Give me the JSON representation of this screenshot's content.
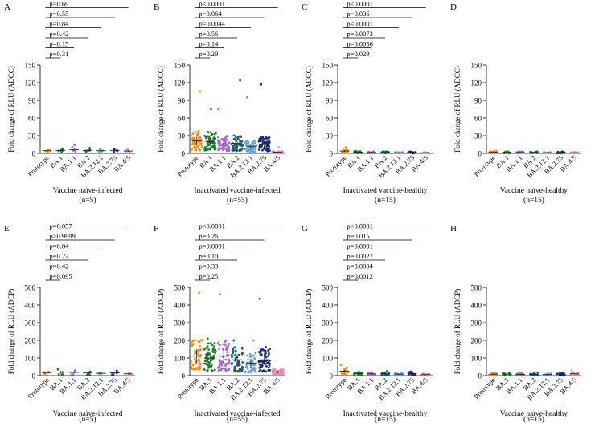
{
  "figure": {
    "colors": {
      "Prototype": "#f28e1c",
      "BA.1": "#1f7a2e",
      "BA.1.1": "#a668c9",
      "BA.2": "#1a5f6e",
      "BA.2.12.1": "#6aa6d4",
      "BA.2.75": "#1c2a7a",
      "BA.4/5": "#e58fb2"
    }
  },
  "chart_data": [
    {
      "panel": "A",
      "type": "scatter",
      "ylabel": "Fold change of RLU (ADCC)",
      "xlabel": "Vaccine naïve-infected",
      "n_label": "(n=5)",
      "ylim": [
        0,
        150
      ],
      "yticks": [
        0,
        30,
        60,
        90,
        120,
        150
      ],
      "categories": [
        "Prototype",
        "BA.1",
        "BA.1.1",
        "BA.2",
        "BA.2.12.1",
        "BA.2.75",
        "BA.4/5"
      ],
      "medians": [
        4.5,
        5,
        6,
        5,
        4.5,
        5,
        4
      ],
      "values": [
        [
          3,
          4,
          4.5,
          5,
          6
        ],
        [
          3,
          4,
          5,
          6,
          8
        ],
        [
          3,
          5,
          6,
          10,
          14
        ],
        [
          3,
          4,
          5,
          6,
          9
        ],
        [
          2,
          3,
          4.5,
          6,
          7
        ],
        [
          3,
          4,
          5,
          6,
          7
        ],
        [
          2,
          3,
          4,
          6,
          7
        ]
      ],
      "pvalues": [
        "p=0.31",
        "p=0.15",
        "p=0.42",
        "p=0.84",
        "p=0.55",
        "p=0.69"
      ]
    },
    {
      "panel": "B",
      "type": "scatter",
      "ylabel": "Fold change of RLU (ADCC)",
      "xlabel": "Inactivated vaccine-infected",
      "n_label": "(n=55)",
      "ylim": [
        0,
        150
      ],
      "yticks": [
        0,
        30,
        60,
        90,
        120,
        150
      ],
      "categories": [
        "Prototype",
        "BA.1",
        "BA.1.1",
        "BA.2",
        "BA.2.12.1",
        "BA.2.75",
        "BA.4/5"
      ],
      "medians": [
        21,
        20,
        16,
        17,
        12,
        15,
        2
      ],
      "max_points": [
        105,
        75,
        75,
        124,
        95,
        117,
        10
      ],
      "pvalues": [
        "p=0.29",
        "p=0.14",
        "p=0.56",
        "p=0.0044",
        "p=0.064",
        "p<0.0001"
      ]
    },
    {
      "panel": "C",
      "type": "scatter",
      "ylabel": "Fold change of RLU (ADCC)",
      "xlabel": "Inactivated vaccine-healthy",
      "n_label": "(n=15)",
      "ylim": [
        0,
        150
      ],
      "yticks": [
        0,
        30,
        60,
        90,
        120,
        150
      ],
      "categories": [
        "Prototype",
        "BA.1",
        "BA.1.1",
        "BA.2",
        "BA.2.12.1",
        "BA.2.75",
        "BA.4/5"
      ],
      "medians": [
        4,
        2,
        1.5,
        1.5,
        1,
        1.5,
        1
      ],
      "max_points": [
        10,
        4,
        3,
        3,
        2,
        3,
        2
      ],
      "pvalues": [
        "p=0.029",
        "p=0.0056",
        "p=0.0073",
        "p<0.0001",
        "p=0.036",
        "p<0.0001"
      ]
    },
    {
      "panel": "D",
      "type": "scatter",
      "ylabel": "Fold change of RLU (ADCC)",
      "xlabel": "Vaccine naïve-healthy",
      "n_label": "(n=15)",
      "ylim": [
        0,
        150
      ],
      "yticks": [
        0,
        30,
        60,
        90,
        120,
        150
      ],
      "categories": [
        "Prototype",
        "BA.1",
        "BA.1.1",
        "BA.2",
        "BA.2.12.1",
        "BA.2.75",
        "BA.4/5"
      ],
      "medians": [
        2,
        1.5,
        1.5,
        1.5,
        1,
        1.5,
        1
      ],
      "max_points": [
        4,
        3,
        3,
        3,
        2,
        3,
        2
      ],
      "pvalues": []
    },
    {
      "panel": "E",
      "type": "scatter",
      "ylabel": "Fold change of RLU (ADCP)",
      "xlabel": "Vaccine naïve-infected",
      "n_label": "(n=5)",
      "ylim": [
        0,
        500
      ],
      "yticks": [
        0,
        100,
        200,
        300,
        400,
        500
      ],
      "categories": [
        "Prototype",
        "BA.1",
        "BA.1.1",
        "BA.2",
        "BA.2.12.1",
        "BA.2.75",
        "BA.4/5"
      ],
      "medians": [
        15,
        20,
        18,
        15,
        13,
        16,
        10
      ],
      "max_points": [
        22,
        35,
        30,
        22,
        18,
        28,
        15
      ],
      "pvalues": [
        "p=0.095",
        "p=0.42",
        "p=0.22",
        "p=0.84",
        "p>0.9999",
        "p=0.057"
      ]
    },
    {
      "panel": "F",
      "type": "scatter",
      "ylabel": "Fold change of RLU (ADCP)",
      "xlabel": "Inactivated vaccine-infected",
      "n_label": "(n=55)",
      "ylim": [
        0,
        500
      ],
      "yticks": [
        0,
        100,
        200,
        300,
        400,
        500
      ],
      "categories": [
        "Prototype",
        "BA.1",
        "BA.1.1",
        "BA.2",
        "BA.2.12.1",
        "BA.2.75",
        "BA.4/5"
      ],
      "medians": [
        110,
        100,
        110,
        90,
        70,
        90,
        20
      ],
      "max_points": [
        470,
        210,
        460,
        200,
        200,
        435,
        40
      ],
      "pvalues": [
        "p=0.25",
        "p=0.33",
        "p=0.10",
        "p=0.0001",
        "p=0.26",
        "p<0.0001"
      ]
    },
    {
      "panel": "G",
      "type": "scatter",
      "ylabel": "Fold change of RLU (ADCP)",
      "xlabel": "Inactivated vaccine-healthy",
      "n_label": "(n=15)",
      "ylim": [
        0,
        500
      ],
      "yticks": [
        0,
        100,
        200,
        300,
        400,
        500
      ],
      "categories": [
        "Prototype",
        "BA.1",
        "BA.1.1",
        "BA.2",
        "BA.2.12.1",
        "BA.2.75",
        "BA.4/5"
      ],
      "medians": [
        25,
        12,
        10,
        10,
        8,
        12,
        6
      ],
      "max_points": [
        60,
        20,
        18,
        25,
        15,
        22,
        12
      ],
      "pvalues": [
        "p=0.0012",
        "p=0.0004",
        "p=0.0027",
        "p=0.0001",
        "p=0.015",
        "p<0.0001"
      ]
    },
    {
      "panel": "H",
      "type": "scatter",
      "ylabel": "Fold change of RLU (ADCP)",
      "xlabel": "Vaccine naïve-healthy",
      "n_label": "(n=15)",
      "ylim": [
        0,
        500
      ],
      "yticks": [
        0,
        100,
        200,
        300,
        400,
        500
      ],
      "categories": [
        "Prototype",
        "BA.1",
        "BA.1.1",
        "BA.2",
        "BA.2.12.1",
        "BA.2.75",
        "BA.4/5"
      ],
      "medians": [
        8,
        8,
        7,
        7,
        6,
        7,
        10
      ],
      "max_points": [
        14,
        15,
        14,
        16,
        12,
        14,
        30
      ],
      "pvalues": []
    }
  ]
}
